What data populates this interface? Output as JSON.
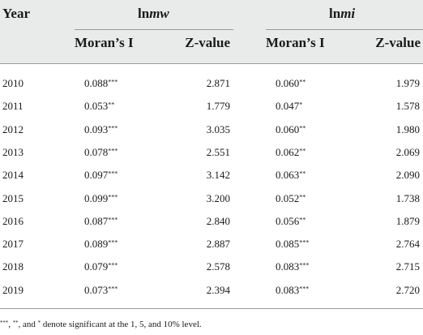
{
  "headers": {
    "year": "Year",
    "group1": "lnmw",
    "group1_prefix": "ln",
    "group1_italic": "mw",
    "group2": "lnmi",
    "group2_prefix": "ln",
    "group2_italic": "mi",
    "morans_i": "Moran’s I",
    "z_value": "Z-value"
  },
  "rows": [
    {
      "year": "2010",
      "mw_i": "0.088",
      "mw_sig": "***",
      "mw_z": "2.871",
      "mi_i": "0.060",
      "mi_sig": "**",
      "mi_z": "1.979"
    },
    {
      "year": "2011",
      "mw_i": "0.053",
      "mw_sig": "**",
      "mw_z": "1.779",
      "mi_i": "0.047",
      "mi_sig": "*",
      "mi_z": "1.578"
    },
    {
      "year": "2012",
      "mw_i": "0.093",
      "mw_sig": "***",
      "mw_z": "3.035",
      "mi_i": "0.060",
      "mi_sig": "**",
      "mi_z": "1.980"
    },
    {
      "year": "2013",
      "mw_i": "0.078",
      "mw_sig": "***",
      "mw_z": "2.551",
      "mi_i": "0.062",
      "mi_sig": "**",
      "mi_z": "2.069"
    },
    {
      "year": "2014",
      "mw_i": "0.097",
      "mw_sig": "***",
      "mw_z": "3.142",
      "mi_i": "0.063",
      "mi_sig": "**",
      "mi_z": "2.090"
    },
    {
      "year": "2015",
      "mw_i": "0.099",
      "mw_sig": "***",
      "mw_z": "3.200",
      "mi_i": "0.052",
      "mi_sig": "**",
      "mi_z": "1.738"
    },
    {
      "year": "2016",
      "mw_i": "0.087",
      "mw_sig": "***",
      "mw_z": "2.840",
      "mi_i": "0.056",
      "mi_sig": "**",
      "mi_z": "1.879"
    },
    {
      "year": "2017",
      "mw_i": "0.089",
      "mw_sig": "***",
      "mw_z": "2.887",
      "mi_i": "0.085",
      "mi_sig": "***",
      "mi_z": "2.764"
    },
    {
      "year": "2018",
      "mw_i": "0.079",
      "mw_sig": "***",
      "mw_z": "2.578",
      "mi_i": "0.083",
      "mi_sig": "***",
      "mi_z": "2.715"
    },
    {
      "year": "2019",
      "mw_i": "0.073",
      "mw_sig": "***",
      "mw_z": "2.394",
      "mi_i": "0.083",
      "mi_sig": "***",
      "mi_z": "2.720"
    }
  ],
  "footnote": {
    "s3": "***",
    "sep1": ", ",
    "s2": "**",
    "sep2": ", and ",
    "s1": "*",
    "text": " denote significant at the 1, 5, and 10% level."
  }
}
